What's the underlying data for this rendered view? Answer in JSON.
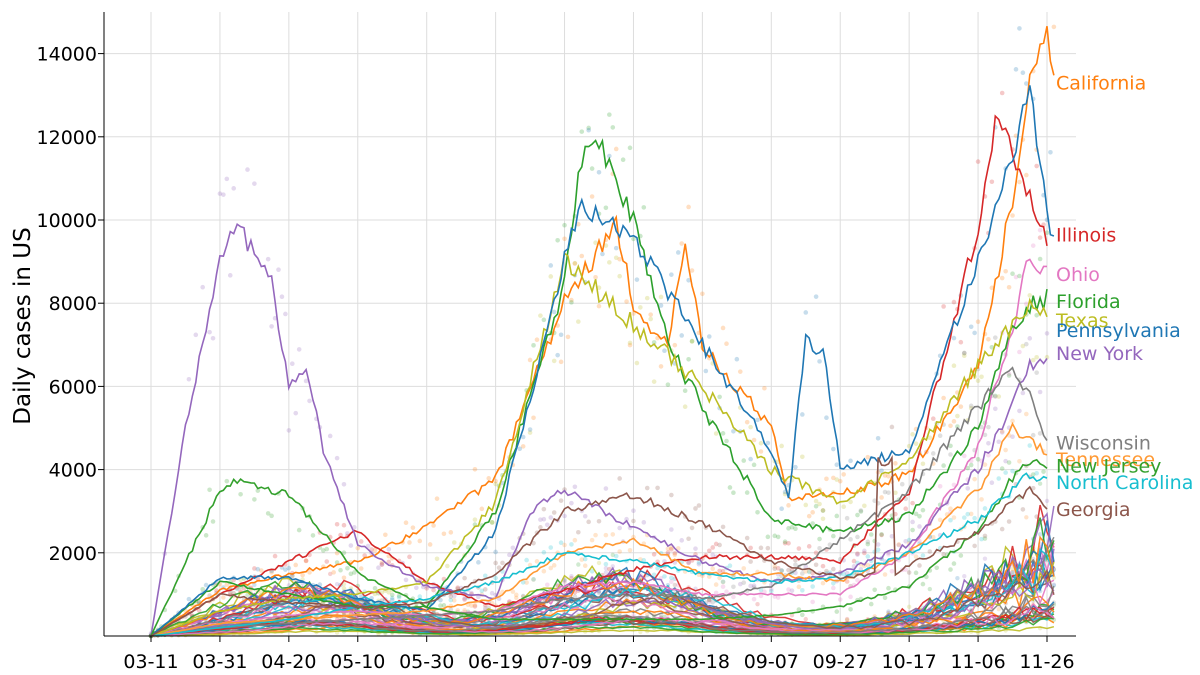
{
  "chart_data": {
    "type": "line",
    "title": "",
    "xlabel": "",
    "ylabel": "Daily cases in US",
    "x_ticks": [
      "03-11",
      "03-31",
      "04-20",
      "05-10",
      "05-30",
      "06-19",
      "07-09",
      "07-29",
      "08-18",
      "09-07",
      "09-27",
      "10-17",
      "11-06",
      "11-26"
    ],
    "y_ticks": [
      2000,
      4000,
      6000,
      8000,
      10000,
      12000,
      14000
    ],
    "ylim": [
      0,
      15000
    ],
    "xlim_days_span": [
      -3,
      261
    ],
    "grid": true,
    "legend": "direct labels at right end of lines",
    "series": [
      {
        "name": "California",
        "color": "#ff7f0e",
        "points": [
          [
            "03-11",
            0
          ],
          [
            "03-31",
            1100
          ],
          [
            "04-20",
            1500
          ],
          [
            "05-10",
            1800
          ],
          [
            "05-30",
            2600
          ],
          [
            "06-19",
            3800
          ],
          [
            "07-09",
            8000
          ],
          [
            "07-24",
            9900
          ],
          [
            "07-29",
            8000
          ],
          [
            "08-08",
            7000
          ],
          [
            "08-13",
            9400
          ],
          [
            "08-18",
            7000
          ],
          [
            "09-07",
            5000
          ],
          [
            "09-12",
            3300
          ],
          [
            "09-27",
            3400
          ],
          [
            "10-17",
            3900
          ],
          [
            "11-06",
            6500
          ],
          [
            "11-16",
            10500
          ],
          [
            "11-21",
            13500
          ],
          [
            "11-26",
            14600
          ],
          [
            "11-28",
            13300
          ]
        ]
      },
      {
        "name": "Illinois",
        "color": "#d62728",
        "points": [
          [
            "03-11",
            0
          ],
          [
            "03-31",
            1000
          ],
          [
            "04-20",
            1800
          ],
          [
            "05-10",
            2500
          ],
          [
            "05-30",
            1300
          ],
          [
            "06-19",
            700
          ],
          [
            "07-09",
            1100
          ],
          [
            "07-29",
            1600
          ],
          [
            "08-18",
            1900
          ],
          [
            "09-07",
            1900
          ],
          [
            "09-27",
            1800
          ],
          [
            "10-17",
            3500
          ],
          [
            "11-06",
            9800
          ],
          [
            "11-11",
            12400
          ],
          [
            "11-16",
            11700
          ],
          [
            "11-21",
            10500
          ],
          [
            "11-26",
            9600
          ]
        ]
      },
      {
        "name": "Ohio",
        "color": "#e377c2",
        "points": [
          [
            "03-11",
            0
          ],
          [
            "03-31",
            300
          ],
          [
            "04-20",
            500
          ],
          [
            "05-10",
            600
          ],
          [
            "05-30",
            500
          ],
          [
            "06-19",
            600
          ],
          [
            "07-09",
            1200
          ],
          [
            "07-29",
            1300
          ],
          [
            "08-18",
            1000
          ],
          [
            "09-07",
            1000
          ],
          [
            "09-27",
            1000
          ],
          [
            "10-17",
            2000
          ],
          [
            "11-06",
            4500
          ],
          [
            "11-16",
            7500
          ],
          [
            "11-21",
            9100
          ],
          [
            "11-26",
            8700
          ]
        ]
      },
      {
        "name": "Florida",
        "color": "#2ca02c",
        "points": [
          [
            "03-11",
            0
          ],
          [
            "03-31",
            1300
          ],
          [
            "04-20",
            1000
          ],
          [
            "05-10",
            700
          ],
          [
            "05-30",
            700
          ],
          [
            "06-19",
            3000
          ],
          [
            "07-09",
            8500
          ],
          [
            "07-14",
            11500
          ],
          [
            "07-19",
            11900
          ],
          [
            "07-29",
            10000
          ],
          [
            "08-08",
            7000
          ],
          [
            "08-18",
            5500
          ],
          [
            "09-07",
            2800
          ],
          [
            "09-27",
            2500
          ],
          [
            "10-17",
            2900
          ],
          [
            "11-06",
            5000
          ],
          [
            "11-16",
            7500
          ],
          [
            "11-21",
            8000
          ],
          [
            "11-26",
            8100
          ]
        ]
      },
      {
        "name": "Texas",
        "color": "#bcbd22",
        "points": [
          [
            "03-11",
            0
          ],
          [
            "03-31",
            600
          ],
          [
            "04-20",
            900
          ],
          [
            "05-10",
            1000
          ],
          [
            "05-30",
            1300
          ],
          [
            "06-19",
            3200
          ],
          [
            "07-09",
            9000
          ],
          [
            "07-29",
            7500
          ],
          [
            "08-18",
            6000
          ],
          [
            "09-07",
            4000
          ],
          [
            "09-27",
            3200
          ],
          [
            "10-17",
            4200
          ],
          [
            "11-06",
            6500
          ],
          [
            "11-16",
            7500
          ],
          [
            "11-21",
            7900
          ],
          [
            "11-26",
            7600
          ]
        ]
      },
      {
        "name": "Pennsylvania",
        "color": "#1f77b4",
        "points": [
          [
            "03-11",
            0
          ],
          [
            "03-31",
            1400
          ],
          [
            "04-20",
            1400
          ],
          [
            "05-10",
            900
          ],
          [
            "05-30",
            600
          ],
          [
            "06-19",
            2500
          ],
          [
            "07-09",
            9000
          ],
          [
            "07-14",
            10400
          ],
          [
            "07-29",
            9500
          ],
          [
            "08-18",
            7000
          ],
          [
            "09-07",
            4500
          ],
          [
            "09-12",
            3300
          ],
          [
            "09-17",
            7100
          ],
          [
            "09-22",
            6900
          ],
          [
            "09-27",
            4000
          ],
          [
            "10-17",
            4500
          ],
          [
            "11-06",
            9000
          ],
          [
            "11-16",
            11500
          ],
          [
            "11-21",
            13300
          ],
          [
            "11-26",
            10100
          ],
          [
            "11-28",
            9500
          ]
        ]
      },
      {
        "name": "New York",
        "color": "#9467bd",
        "points": [
          [
            "03-11",
            0
          ],
          [
            "03-21",
            5000
          ],
          [
            "03-31",
            9000
          ],
          [
            "04-05",
            9900
          ],
          [
            "04-15",
            8500
          ],
          [
            "04-20",
            6000
          ],
          [
            "04-25",
            6500
          ],
          [
            "04-30",
            4500
          ],
          [
            "05-10",
            2200
          ],
          [
            "05-30",
            1200
          ],
          [
            "06-19",
            900
          ],
          [
            "06-29",
            3000
          ],
          [
            "07-09",
            3500
          ],
          [
            "07-29",
            2600
          ],
          [
            "08-18",
            1800
          ],
          [
            "09-07",
            1300
          ],
          [
            "09-27",
            1500
          ],
          [
            "10-17",
            2200
          ],
          [
            "11-06",
            4000
          ],
          [
            "11-16",
            5500
          ],
          [
            "11-21",
            6500
          ],
          [
            "11-26",
            6800
          ]
        ]
      },
      {
        "name": "Wisconsin",
        "color": "#7f7f7f",
        "points": [
          [
            "03-11",
            0
          ],
          [
            "03-31",
            200
          ],
          [
            "04-20",
            300
          ],
          [
            "05-10",
            400
          ],
          [
            "05-30",
            500
          ],
          [
            "06-19",
            600
          ],
          [
            "07-09",
            900
          ],
          [
            "07-29",
            1000
          ],
          [
            "08-18",
            900
          ],
          [
            "09-07",
            1200
          ],
          [
            "09-27",
            2300
          ],
          [
            "10-17",
            3500
          ],
          [
            "11-06",
            5500
          ],
          [
            "11-16",
            6500
          ],
          [
            "11-21",
            5800
          ],
          [
            "11-26",
            4600
          ]
        ]
      },
      {
        "name": "Tennessee",
        "color": "#ff9933",
        "points": [
          [
            "03-11",
            0
          ],
          [
            "03-31",
            300
          ],
          [
            "04-20",
            400
          ],
          [
            "05-10",
            500
          ],
          [
            "05-30",
            600
          ],
          [
            "06-19",
            900
          ],
          [
            "07-09",
            2000
          ],
          [
            "07-29",
            2300
          ],
          [
            "08-18",
            1500
          ],
          [
            "09-07",
            1500
          ],
          [
            "09-27",
            1300
          ],
          [
            "10-17",
            2000
          ],
          [
            "11-06",
            3500
          ],
          [
            "11-16",
            5000
          ],
          [
            "11-21",
            4700
          ],
          [
            "11-26",
            4400
          ]
        ]
      },
      {
        "name": "New Jersey",
        "color": "#33a02c",
        "points": [
          [
            "03-11",
            0
          ],
          [
            "03-31",
            3500
          ],
          [
            "04-05",
            3700
          ],
          [
            "04-20",
            3400
          ],
          [
            "05-10",
            1500
          ],
          [
            "05-30",
            700
          ],
          [
            "06-19",
            400
          ],
          [
            "07-09",
            400
          ],
          [
            "07-29",
            400
          ],
          [
            "08-18",
            400
          ],
          [
            "09-07",
            500
          ],
          [
            "09-27",
            700
          ],
          [
            "10-17",
            1200
          ],
          [
            "11-06",
            2500
          ],
          [
            "11-16",
            3800
          ],
          [
            "11-21",
            4200
          ],
          [
            "11-26",
            4100
          ]
        ]
      },
      {
        "name": "North Carolina",
        "color": "#17becf",
        "points": [
          [
            "03-11",
            0
          ],
          [
            "03-31",
            200
          ],
          [
            "04-20",
            400
          ],
          [
            "05-10",
            700
          ],
          [
            "05-30",
            900
          ],
          [
            "06-19",
            1300
          ],
          [
            "07-09",
            2000
          ],
          [
            "07-29",
            1800
          ],
          [
            "08-18",
            1500
          ],
          [
            "09-07",
            1300
          ],
          [
            "09-27",
            1400
          ],
          [
            "10-17",
            2000
          ],
          [
            "11-06",
            2800
          ],
          [
            "11-16",
            3500
          ],
          [
            "11-21",
            3900
          ],
          [
            "11-26",
            3700
          ]
        ]
      },
      {
        "name": "Georgia",
        "color": "#8c564b",
        "points": [
          [
            "03-11",
            0
          ],
          [
            "03-31",
            1000
          ],
          [
            "04-20",
            800
          ],
          [
            "05-10",
            700
          ],
          [
            "05-30",
            800
          ],
          [
            "06-19",
            1500
          ],
          [
            "07-09",
            3000
          ],
          [
            "07-29",
            3400
          ],
          [
            "08-18",
            2700
          ],
          [
            "09-07",
            1800
          ],
          [
            "09-27",
            1400
          ],
          [
            "10-07",
            1500
          ],
          [
            "10-08",
            4200
          ],
          [
            "10-12",
            4200
          ],
          [
            "10-13",
            1500
          ],
          [
            "10-17",
            1700
          ],
          [
            "11-06",
            2500
          ],
          [
            "11-16",
            3200
          ],
          [
            "11-21",
            3500
          ],
          [
            "11-26",
            3100
          ]
        ]
      }
    ],
    "labels": [
      {
        "text": "California",
        "y": 13300,
        "color": "#ff7f0e"
      },
      {
        "text": "Illinois",
        "y": 9650,
        "color": "#d62728"
      },
      {
        "text": "Ohio",
        "y": 8700,
        "color": "#e377c2"
      },
      {
        "text": "Florida",
        "y": 8050,
        "color": "#2ca02c"
      },
      {
        "text": "Texas",
        "y": 7600,
        "color": "#bcbd22"
      },
      {
        "text": "Pennsylvania",
        "y": 7350,
        "color": "#1f77b4"
      },
      {
        "text": "New York",
        "y": 6800,
        "color": "#9467bd"
      },
      {
        "text": "Wisconsin",
        "y": 4650,
        "color": "#7f7f7f"
      },
      {
        "text": "Tennessee",
        "y": 4250,
        "color": "#ff9933"
      },
      {
        "text": "New Jersey",
        "y": 4100,
        "color": "#33a02c"
      },
      {
        "text": "North Carolina",
        "y": 3700,
        "color": "#17becf"
      },
      {
        "text": "Georgia",
        "y": 3050,
        "color": "#8c564b"
      }
    ],
    "background_series_colors": [
      "#1f77b4",
      "#ff7f0e",
      "#2ca02c",
      "#d62728",
      "#9467bd",
      "#8c564b",
      "#e377c2",
      "#7f7f7f",
      "#bcbd22",
      "#17becf"
    ]
  }
}
